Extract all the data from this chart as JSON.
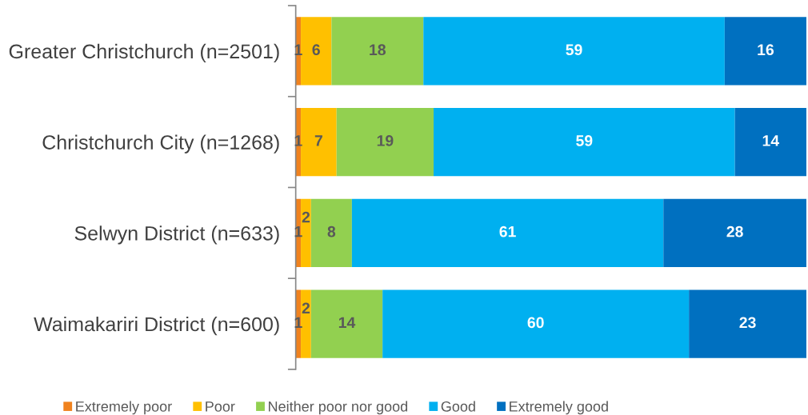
{
  "chart_data": {
    "type": "bar",
    "orientation": "horizontal",
    "stacked": true,
    "categories": [
      "Greater Christchurch (n=2501)",
      "Christchurch City (n=1268)",
      "Selwyn District (n=633)",
      "Waimakariri District (n=600)"
    ],
    "series": [
      {
        "name": "Extremely poor",
        "color": "#f0821e",
        "values": [
          1,
          1,
          1,
          1
        ]
      },
      {
        "name": "Poor",
        "color": "#ffc000",
        "values": [
          6,
          7,
          2,
          2
        ]
      },
      {
        "name": "Neither poor nor good",
        "color": "#92d050",
        "values": [
          18,
          19,
          8,
          14
        ]
      },
      {
        "name": "Good",
        "color": "#00b0f0",
        "values": [
          59,
          59,
          61,
          60
        ]
      },
      {
        "name": "Extremely good",
        "color": "#0070c0",
        "values": [
          16,
          14,
          28,
          23
        ]
      }
    ],
    "data_labels": true,
    "legend": "bottom",
    "tick_labels": "y"
  }
}
